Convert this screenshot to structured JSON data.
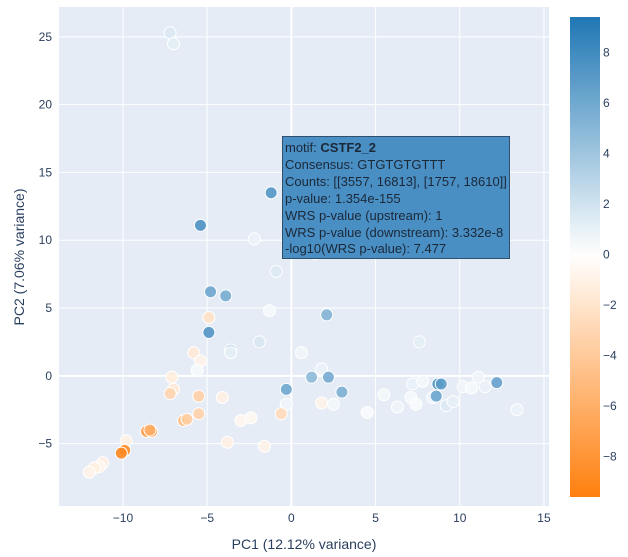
{
  "chart_data": {
    "type": "scatter",
    "xlabel": "PC1 (12.12% variance)",
    "ylabel": "PC2 (7.06% variance)",
    "xlim": [
      -13.8,
      15.3
    ],
    "ylim": [
      -9.6,
      27.2
    ],
    "xticks": [
      -10,
      -5,
      0,
      5,
      10,
      15
    ],
    "xtick_labels": [
      "−10",
      "−5",
      "0",
      "5",
      "10",
      "15"
    ],
    "yticks": [
      -5,
      0,
      5,
      10,
      15,
      20,
      25
    ],
    "ytick_labels": [
      "−5",
      "0",
      "5",
      "10",
      "15",
      "20",
      "25"
    ],
    "grid": true,
    "colorscale": {
      "type": "diverging",
      "min": -9.6,
      "max": 9.4,
      "low_color": "#ff7f0e",
      "mid_color": "#ffffff",
      "high_color": "#1f77b4",
      "ticks": [
        8,
        6,
        4,
        2,
        0,
        -2,
        -4,
        -6,
        -8
      ],
      "tick_labels": [
        "8",
        "6",
        "4",
        "2",
        "0",
        "−2",
        "−4",
        "−6",
        "−8"
      ],
      "placement": "right"
    },
    "points": [
      {
        "x": -7.2,
        "y": 25.3,
        "c": 1.5
      },
      {
        "x": -7.0,
        "y": 24.5,
        "c": 1.2
      },
      {
        "x": -1.2,
        "y": 13.5,
        "c": 7.2
      },
      {
        "x": -5.4,
        "y": 11.1,
        "c": 7.5
      },
      {
        "x": -2.2,
        "y": 10.1,
        "c": 0.8
      },
      {
        "x": 1.4,
        "y": 9.0,
        "c": 1.8
      },
      {
        "x": -0.9,
        "y": 7.7,
        "c": 1.5
      },
      {
        "x": -4.8,
        "y": 6.2,
        "c": 6.2
      },
      {
        "x": -3.9,
        "y": 5.9,
        "c": 5.7
      },
      {
        "x": -1.3,
        "y": 4.8,
        "c": 0.4
      },
      {
        "x": 2.1,
        "y": 4.5,
        "c": 5.2
      },
      {
        "x": -4.9,
        "y": 4.3,
        "c": -2.2
      },
      {
        "x": -4.9,
        "y": 3.2,
        "c": 7.3
      },
      {
        "x": -1.9,
        "y": 2.5,
        "c": 1.6
      },
      {
        "x": -3.6,
        "y": 1.9,
        "c": 2.6
      },
      {
        "x": -3.6,
        "y": 1.7,
        "c": 1.1
      },
      {
        "x": -5.8,
        "y": 1.7,
        "c": -1.6
      },
      {
        "x": -5.4,
        "y": 1.1,
        "c": -0.9
      },
      {
        "x": 0.6,
        "y": 1.7,
        "c": 0.6
      },
      {
        "x": 7.6,
        "y": 2.5,
        "c": 1.2
      },
      {
        "x": -5.6,
        "y": 0.4,
        "c": 0.4
      },
      {
        "x": 1.8,
        "y": 0.5,
        "c": 0.9
      },
      {
        "x": 2.2,
        "y": -0.1,
        "c": 5.8
      },
      {
        "x": 1.2,
        "y": -0.1,
        "c": 4.8
      },
      {
        "x": -7.1,
        "y": -0.1,
        "c": -1.3
      },
      {
        "x": -0.3,
        "y": -1.0,
        "c": 6.1
      },
      {
        "x": 3.0,
        "y": -1.2,
        "c": 5.5
      },
      {
        "x": -7.0,
        "y": -1.0,
        "c": -1.6
      },
      {
        "x": -7.2,
        "y": -1.3,
        "c": -3.2
      },
      {
        "x": -5.5,
        "y": -1.5,
        "c": -3.5
      },
      {
        "x": -4.1,
        "y": -1.6,
        "c": -1.0
      },
      {
        "x": 1.8,
        "y": -2.0,
        "c": -0.9
      },
      {
        "x": 2.5,
        "y": -2.1,
        "c": 0.5
      },
      {
        "x": -0.3,
        "y": -2.1,
        "c": 0.7
      },
      {
        "x": -0.6,
        "y": -2.8,
        "c": -2.8
      },
      {
        "x": -5.5,
        "y": -2.8,
        "c": -3.3
      },
      {
        "x": 4.5,
        "y": -2.7,
        "c": 0.3
      },
      {
        "x": 5.5,
        "y": -1.4,
        "c": 0.5
      },
      {
        "x": 6.3,
        "y": -2.3,
        "c": 0.7
      },
      {
        "x": 7.1,
        "y": -1.6,
        "c": 0.4
      },
      {
        "x": 7.2,
        "y": -0.6,
        "c": 0.9
      },
      {
        "x": 7.4,
        "y": -2.1,
        "c": 0.3
      },
      {
        "x": 7.8,
        "y": -0.4,
        "c": 0.5
      },
      {
        "x": 8.4,
        "y": -1.6,
        "c": 0.8
      },
      {
        "x": 8.6,
        "y": -1.5,
        "c": 6.3
      },
      {
        "x": 8.7,
        "y": -0.6,
        "c": 7.4
      },
      {
        "x": 8.9,
        "y": -0.6,
        "c": 6.9
      },
      {
        "x": 9.2,
        "y": -2.2,
        "c": 1.5
      },
      {
        "x": 9.6,
        "y": -1.9,
        "c": 1.1
      },
      {
        "x": 10.2,
        "y": -0.8,
        "c": 0.6
      },
      {
        "x": 10.7,
        "y": -0.9,
        "c": 0.4
      },
      {
        "x": 11.1,
        "y": -0.1,
        "c": 0.7
      },
      {
        "x": 11.5,
        "y": -0.8,
        "c": 0.9
      },
      {
        "x": 12.2,
        "y": -0.5,
        "c": 6.4
      },
      {
        "x": 13.4,
        "y": -2.5,
        "c": 0.8
      },
      {
        "x": -6.4,
        "y": -3.3,
        "c": -5.1
      },
      {
        "x": -6.2,
        "y": -3.2,
        "c": -3.7
      },
      {
        "x": -3.0,
        "y": -3.3,
        "c": -0.6
      },
      {
        "x": -2.4,
        "y": -3.1,
        "c": -0.5
      },
      {
        "x": -8.6,
        "y": -4.1,
        "c": -7.6
      },
      {
        "x": -8.3,
        "y": -4.1,
        "c": -7.3
      },
      {
        "x": -8.4,
        "y": -4.0,
        "c": -6.1
      },
      {
        "x": -9.8,
        "y": -4.8,
        "c": -1.0
      },
      {
        "x": -3.8,
        "y": -4.9,
        "c": -1.1
      },
      {
        "x": -1.6,
        "y": -5.2,
        "c": -0.9
      },
      {
        "x": -9.9,
        "y": -5.5,
        "c": -8.5
      },
      {
        "x": -10.1,
        "y": -5.7,
        "c": -8.9
      },
      {
        "x": -11.2,
        "y": -6.4,
        "c": -1.1
      },
      {
        "x": -11.4,
        "y": -6.7,
        "c": -0.8
      },
      {
        "x": -11.7,
        "y": -6.8,
        "c": -1.2
      },
      {
        "x": -12.0,
        "y": -7.1,
        "c": -0.9
      }
    ],
    "hover_label": {
      "motif_prefix": "motif: ",
      "motif_name": "CSTF2_2",
      "lines": [
        "Consensus: GTGTGTGTTT",
        "Counts: [[3557, 16813], [1757, 18610]]",
        "p-value: 1.354e-155",
        "WRS p-value (upstream): 1",
        "WRS p-value (downstream): 3.332e-8",
        "-log10(WRS p-value): 7.477"
      ]
    }
  }
}
